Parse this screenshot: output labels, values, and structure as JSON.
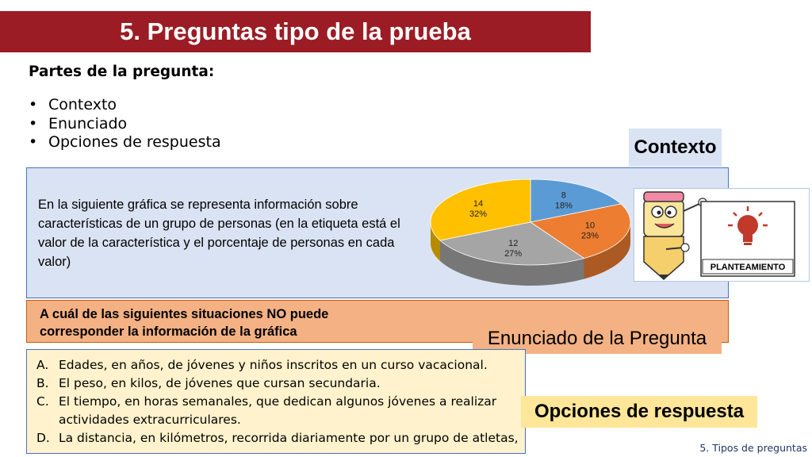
{
  "title": "5. Preguntas tipo de la prueba",
  "parts": {
    "heading": "Partes de la pregunta:",
    "items": [
      "Contexto",
      "Enunciado",
      "Opciones de respuesta"
    ]
  },
  "tags": {
    "contexto": "Contexto",
    "enunciado": "Enunciado de la Pregunta",
    "opciones": "Opciones de respuesta"
  },
  "context_text": "En la siguiente gráfica se representa información sobre características de un grupo de personas (en la etiqueta está el valor de la característica y el porcentaje de personas en cada valor)",
  "question": "A cuál de las siguientes situaciones NO puede corresponder la información de la gráfica",
  "options": [
    {
      "letter": "A.",
      "text": "Edades, en años, de jóvenes y niños inscritos  en un curso vacacional."
    },
    {
      "letter": "B.",
      "text": "El peso, en kilos, de jóvenes que cursan secundaria."
    },
    {
      "letter": "C.",
      "text": "El tiempo, en horas semanales, que dedican algunos jóvenes a realizar actividades extracurriculares."
    },
    {
      "letter": "D.",
      "text": "La distancia, en kilómetros, recorrida diariamente por un grupo de atletas,"
    }
  ],
  "figure_label": "PLANTEAMIENTO",
  "footer": "5. Tipos de preguntas",
  "colors": {
    "title_bg": "#9b1c24",
    "context_bg": "#dae3f3",
    "question_bg": "#f4b183",
    "options_bg": "#fff2cc"
  },
  "chart_data": {
    "type": "pie",
    "slices": [
      {
        "label": "8",
        "percent": "18%",
        "value": 18,
        "color": "#5b9bd5"
      },
      {
        "label": "10",
        "percent": "23%",
        "value": 23,
        "color": "#ed7d31"
      },
      {
        "label": "12",
        "percent": "27%",
        "value": 27,
        "color": "#a5a5a5"
      },
      {
        "label": "14",
        "percent": "32%",
        "value": 32,
        "color": "#ffc000"
      }
    ]
  }
}
